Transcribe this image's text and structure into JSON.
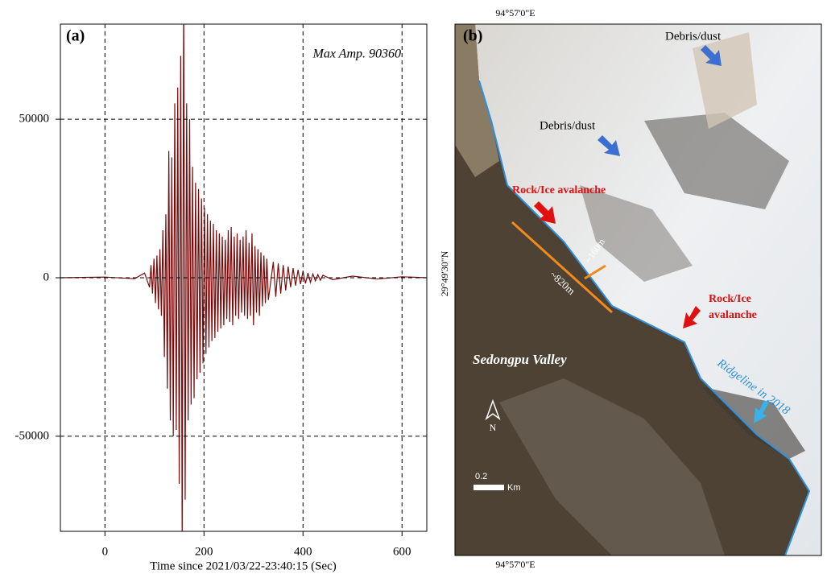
{
  "chart_data": {
    "type": "line",
    "panel_label": "(a)",
    "annotation": "Max Amp. 90360",
    "xlabel": "Time since 2021/03/22-23:40:15 (Sec)",
    "color": "#7a0a0a",
    "grid": true,
    "xlim": [
      -90,
      650
    ],
    "xticks": [
      0,
      200,
      400,
      600
    ],
    "ylim": [
      -80000,
      80000
    ],
    "yticks": [
      -50000,
      0,
      50000
    ],
    "x": [
      -90,
      0,
      60,
      80,
      90,
      93,
      96,
      99,
      102,
      105,
      108,
      111,
      114,
      117,
      120,
      123,
      126,
      129,
      132,
      135,
      138,
      141,
      144,
      147,
      150,
      153,
      156,
      159,
      162,
      165,
      168,
      171,
      174,
      177,
      180,
      183,
      186,
      189,
      192,
      195,
      198,
      201,
      204,
      207,
      210,
      213,
      216,
      219,
      222,
      225,
      228,
      231,
      234,
      237,
      240,
      243,
      246,
      249,
      252,
      255,
      258,
      261,
      264,
      267,
      270,
      273,
      276,
      279,
      282,
      285,
      288,
      291,
      294,
      297,
      300,
      303,
      306,
      309,
      312,
      315,
      318,
      321,
      324,
      327,
      330,
      340,
      345,
      350,
      355,
      360,
      365,
      370,
      375,
      380,
      385,
      390,
      395,
      400,
      405,
      410,
      415,
      420,
      425,
      430,
      435,
      440,
      460,
      500,
      550,
      600,
      650
    ],
    "values": [
      0,
      200,
      -300,
      1500,
      -3000,
      4000,
      -5000,
      6000,
      -8000,
      7000,
      -10000,
      9000,
      -12000,
      15000,
      -25000,
      20000,
      -35000,
      40000,
      -45000,
      38000,
      -50000,
      55000,
      -48000,
      60000,
      -65000,
      70000,
      -85000,
      90360,
      -70000,
      55000,
      -45000,
      50000,
      -40000,
      35000,
      -38000,
      30000,
      -32000,
      28000,
      -30000,
      25000,
      -27000,
      22000,
      -24000,
      20000,
      -22000,
      18000,
      -20000,
      17000,
      -19000,
      15000,
      -17000,
      14000,
      -16000,
      13000,
      -15000,
      12000,
      -13000,
      15000,
      -14000,
      16000,
      -15000,
      13000,
      -12000,
      14000,
      -13000,
      12000,
      -11000,
      13000,
      -12000,
      15000,
      -13000,
      11000,
      -12000,
      14000,
      -15000,
      10000,
      -11000,
      9000,
      -12000,
      8000,
      -9000,
      7000,
      -8000,
      6000,
      -7000,
      5000,
      -6000,
      4500,
      -5000,
      4000,
      -4000,
      3500,
      -3000,
      3000,
      -2500,
      2500,
      -2000,
      2000,
      -1800,
      1500,
      -1500,
      1200,
      -1000,
      1000,
      -800,
      800,
      -600,
      500,
      -400,
      300,
      0
    ]
  },
  "map": {
    "panel_label": "(b)",
    "lon_top": "94°57'0\"E",
    "lon_bottom": "94°57'0\"E",
    "lat_left": "29°49'30\"N",
    "debris_1": "Debris/dust",
    "debris_2": "Debris/dust",
    "avalanche_1": "Rock/Ice avalanche",
    "avalanche_2a": "Rock/Ice",
    "avalanche_2b": "avalanche",
    "width_label": "~160m",
    "length_label": "~820m",
    "valley": "Sedongpu Valley",
    "ridgeline": "Ridgeline in 2018",
    "north": "N",
    "scale_value": "0.2",
    "scale_unit": "Km"
  }
}
